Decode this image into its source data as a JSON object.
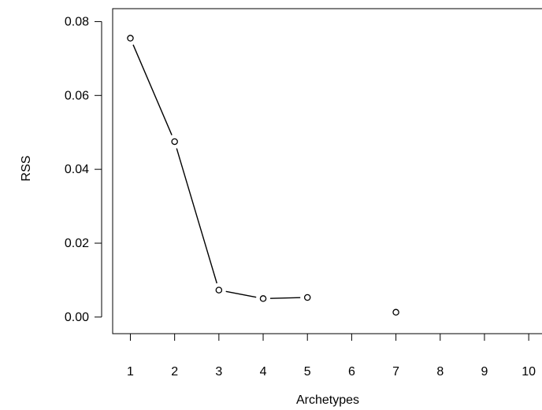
{
  "chart_data": {
    "type": "line",
    "style": "base-graphics type=b (points joined by line segments with gaps)",
    "xlabel": "Archetypes",
    "ylabel": "RSS",
    "x": [
      1,
      2,
      3,
      4,
      5,
      6,
      7,
      8,
      9,
      10
    ],
    "y": [
      0.0755,
      0.0475,
      0.0073,
      0.005,
      0.0053,
      null,
      0.0013,
      null,
      null,
      null
    ],
    "xticks": [
      "1",
      "2",
      "3",
      "4",
      "5",
      "6",
      "7",
      "8",
      "9",
      "10"
    ],
    "yticks": [
      "0.00",
      "0.02",
      "0.04",
      "0.06",
      "0.08"
    ],
    "xlim": [
      0.6,
      10.3
    ],
    "ylim": [
      -0.0045,
      0.0835
    ],
    "grid": false,
    "legend": "none",
    "colors": {
      "line": "#000000",
      "points": "#000000"
    }
  }
}
